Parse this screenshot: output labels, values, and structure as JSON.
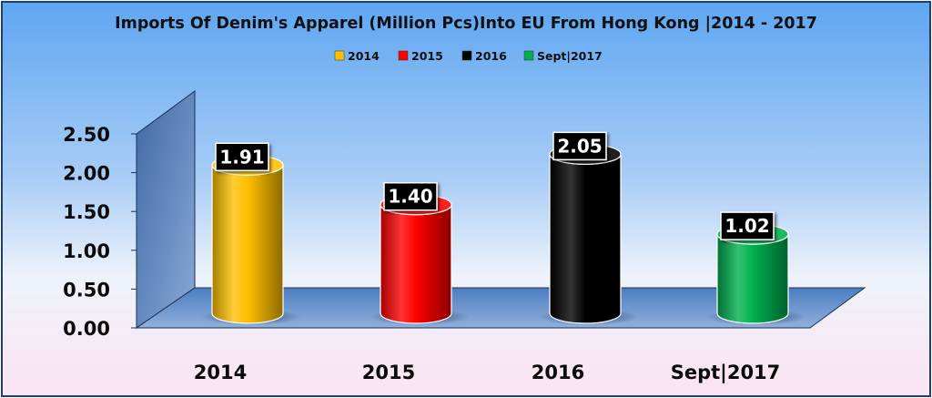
{
  "chart_data": {
    "type": "bar",
    "title": "Imports Of Denim's Apparel (Million Pcs)Into EU From Hong Kong |2014 - 2017",
    "categories": [
      "2014",
      "2015",
      "2016",
      "Sept|2017"
    ],
    "values": [
      1.91,
      1.4,
      2.05,
      1.02
    ],
    "value_labels": [
      "1.91",
      "1.40",
      "2.05",
      "1.02"
    ],
    "colors": [
      "#ffc000",
      "#ff0000",
      "#000000",
      "#00b050"
    ],
    "legend": [
      "2014",
      "2015",
      "2016",
      "Sept|2017"
    ],
    "legend_position": "top",
    "y_ticks": [
      "0.00",
      "0.50",
      "1.00",
      "1.50",
      "2.00",
      "2.50"
    ],
    "ylim": [
      0,
      2.5
    ],
    "xlabel": "",
    "ylabel": "",
    "grid": false
  }
}
